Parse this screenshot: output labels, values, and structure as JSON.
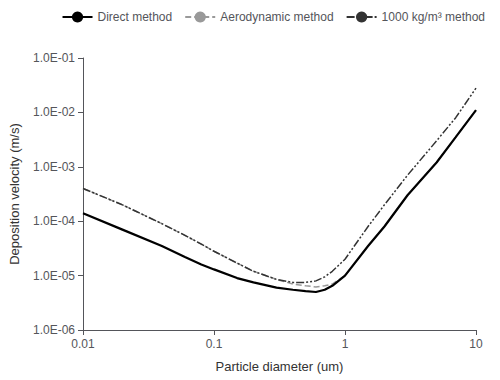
{
  "chart_data": {
    "type": "line",
    "xlabel": "Particle diameter (um)",
    "ylabel": "Deposition velocity (m/s)",
    "log": true,
    "grid": false,
    "legend": "upper right",
    "xlim": [
      0.01,
      10
    ],
    "ylim": [
      1e-06,
      0.1
    ],
    "xticks": [
      0.01,
      0.1,
      1,
      10
    ],
    "yticks": [
      {
        "value": 1e-06,
        "label": "1.0E-06"
      },
      {
        "value": 1e-05,
        "label": "1.0E-05"
      },
      {
        "value": 0.0001,
        "label": "1.0E-04"
      },
      {
        "value": 0.001,
        "label": "1.0E-03"
      },
      {
        "value": 0.01,
        "label": "1.0E-02"
      },
      {
        "value": 0.1,
        "label": "1.0E-01"
      }
    ],
    "x": [
      0.01,
      0.02,
      0.04,
      0.06,
      0.08,
      0.1,
      0.15,
      0.2,
      0.3,
      0.4,
      0.5,
      0.6,
      0.7,
      0.8,
      1.0,
      1.5,
      2.0,
      3.0,
      5.0,
      7.0,
      10.0
    ],
    "series": [
      {
        "name": "Direct method",
        "color": "#000000",
        "line_style": "solid",
        "values": [
          0.00014,
          7e-05,
          3.5e-05,
          2.2e-05,
          1.6e-05,
          1.3e-05,
          9e-06,
          7.5e-06,
          6e-06,
          5.5e-06,
          5.2e-06,
          5e-06,
          5.5e-06,
          6.5e-06,
          1e-05,
          3.5e-05,
          8e-05,
          0.0003,
          0.0012,
          0.0035,
          0.011
        ]
      },
      {
        "name": "Aerodynamic method",
        "color": "#999999",
        "line_style": "dashed",
        "values": [
          0.0004,
          0.0002,
          9e-05,
          5.5e-05,
          3.8e-05,
          2.8e-05,
          1.7e-05,
          1.2e-05,
          8.5e-06,
          7e-06,
          6.5e-06,
          6.2e-06,
          6.5e-06,
          7e-06,
          1e-05,
          3.5e-05,
          8e-05,
          0.0003,
          0.0012,
          0.0035,
          0.011
        ]
      },
      {
        "name": "1000 kg/m³ method",
        "color": "#333333",
        "line_style": "dashdotdot",
        "values": [
          0.0004,
          0.0002,
          9e-05,
          5.5e-05,
          3.8e-05,
          2.8e-05,
          1.7e-05,
          1.2e-05,
          8.5e-06,
          7.5e-06,
          7.5e-06,
          8e-06,
          9.5e-06,
          1.2e-05,
          2e-05,
          8e-05,
          0.0002,
          0.0007,
          0.003,
          0.008,
          0.028
        ]
      }
    ]
  }
}
